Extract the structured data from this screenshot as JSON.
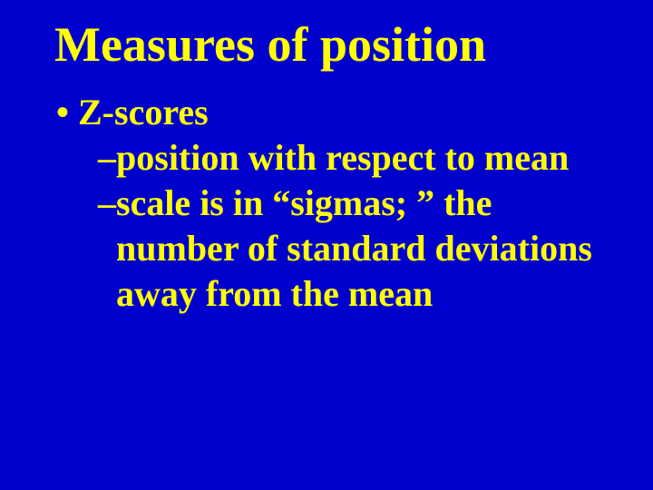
{
  "background_color": "#0000cc",
  "text_color": "#ffff00",
  "font_family": "Times New Roman",
  "title_fontsize": 54,
  "body_fontsize": 40,
  "title": "Measures of position",
  "bullet": {
    "marker": "•",
    "text": "Z-scores"
  },
  "subitems": [
    {
      "marker": "–",
      "text": "position with respect to mean"
    },
    {
      "marker": "–",
      "text": "scale is in “sigmas; ” the number of standard deviations away from the mean"
    }
  ]
}
